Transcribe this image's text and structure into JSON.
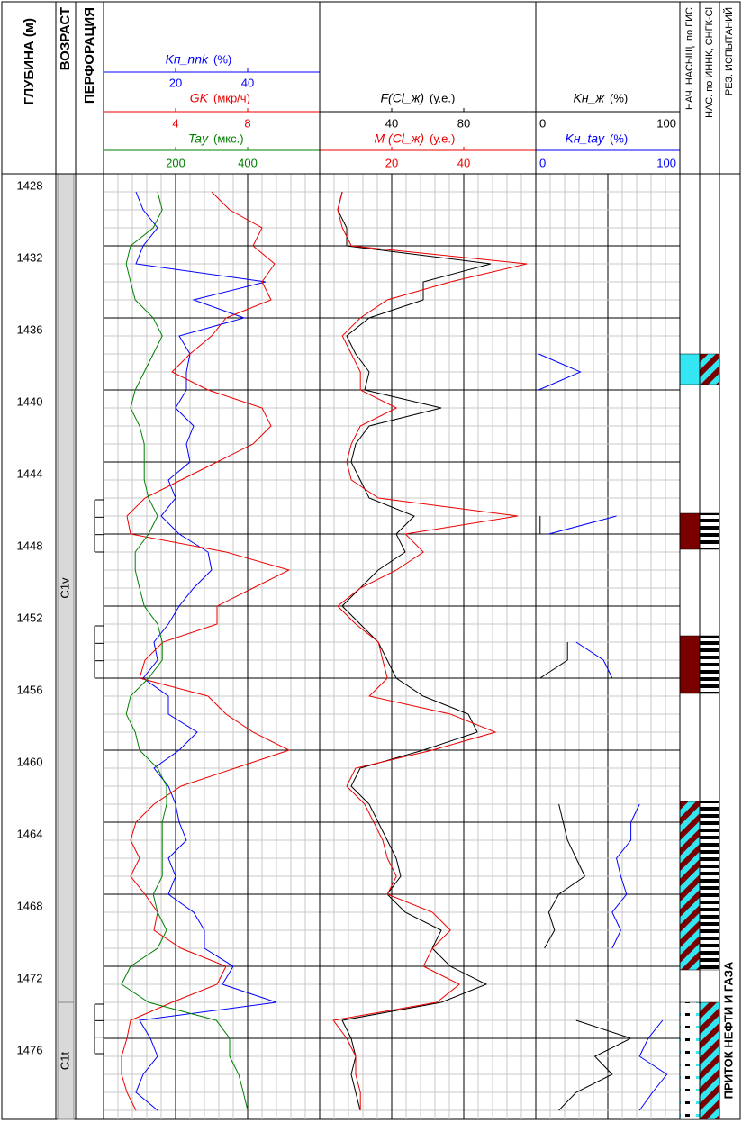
{
  "chart_data": {
    "type": "well-log",
    "depth_label": "ГЛУБИНА (м)",
    "ylim": [
      1428,
      1480.5
    ],
    "yticks": [
      1428,
      1432,
      1436,
      1440,
      1444,
      1448,
      1452,
      1456,
      1460,
      1464,
      1468,
      1472,
      1476
    ],
    "grid": true,
    "age": {
      "title": "ВОЗРАСТ",
      "intervals": [
        {
          "label": "C1v",
          "top": 1428,
          "bottom": 1474
        },
        {
          "label": "C1t",
          "top": 1474,
          "bottom": 1480.5
        }
      ]
    },
    "perforation": {
      "title": "ПЕРФОРАЦИЯ",
      "intervals": [
        {
          "top": 1446.1,
          "bottom": 1449
        },
        {
          "top": 1453.1,
          "bottom": 1456
        },
        {
          "top": 1474.1,
          "bottom": 1476.85
        }
      ]
    },
    "depths": [
      1429,
      1430,
      1431,
      1432,
      1433,
      1434,
      1435,
      1436,
      1437,
      1438,
      1439,
      1440,
      1441,
      1442,
      1443,
      1444,
      1445,
      1446,
      1447,
      1448,
      1449,
      1450,
      1451,
      1452,
      1453,
      1454,
      1455,
      1456,
      1457,
      1458,
      1459,
      1460,
      1461,
      1462,
      1463,
      1464,
      1465,
      1466,
      1467,
      1468,
      1469,
      1470,
      1471,
      1472,
      1473,
      1474,
      1475,
      1476,
      1477,
      1478,
      1479,
      1480
    ],
    "tracks": [
      {
        "series": [
          {
            "name": "Kп_nnk",
            "unit": "(%)",
            "color": "#0000ff",
            "xlim": [
              0,
              60
            ],
            "xticks": [
              20,
              40
            ],
            "values": [
              9,
              11,
              15,
              11,
              9,
              45,
              25,
              39,
              21,
              24,
              23,
              23,
              20,
              25,
              23,
              24,
              18,
              20,
              16,
              21,
              29,
              30,
              25,
              21,
              18,
              14,
              15,
              11,
              18,
              18,
              26,
              21,
              14,
              18,
              20,
              21,
              23,
              18,
              20,
              18,
              25,
              28,
              28,
              36,
              33,
              48,
              10,
              13,
              15,
              11,
              9,
              15
            ]
          },
          {
            "name": "GK",
            "unit": "(мкр/ч)",
            "color": "#ee0000",
            "xlim": [
              0,
              12
            ],
            "xticks": [
              4,
              8
            ],
            "values": [
              6.0,
              7.0,
              8.8,
              8.3,
              9.5,
              8.8,
              9.3,
              6.8,
              6.0,
              4.8,
              3.8,
              5.8,
              8.8,
              9.3,
              8.3,
              6.3,
              4.3,
              2.3,
              1.3,
              1.5,
              6.8,
              10.3,
              8.3,
              6.3,
              6.3,
              3.3,
              2.3,
              2.0,
              5.8,
              6.8,
              8.3,
              10.3,
              7.3,
              4.3,
              2.8,
              1.8,
              1.5,
              2.0,
              1.5,
              2.3,
              3.0,
              2.8,
              4.3,
              6.8,
              6.3,
              3.8,
              1.5,
              1.3,
              1.0,
              1.0,
              1.3,
              1.8
            ]
          },
          {
            "name": "Tay",
            "unit": "(мкс.)",
            "color": "#008000",
            "xlim": [
              0,
              600
            ],
            "xticks": [
              200,
              400
            ],
            "values": [
              150,
              163,
              138,
              75,
              63,
              75,
              88,
              138,
              163,
              138,
              113,
              88,
              75,
              100,
              113,
              113,
              113,
              125,
              150,
              125,
              88,
              88,
              100,
              113,
              150,
              163,
              163,
              125,
              75,
              63,
              88,
              100,
              150,
              175,
              175,
              163,
              163,
              163,
              163,
              138,
              150,
              175,
              150,
              75,
              50,
              125,
              313,
              350,
              350,
              375,
              388,
              400
            ]
          }
        ]
      },
      {
        "series": [
          {
            "name": "F(Cl_ж)",
            "unit": "(у.е.)",
            "color": "#000000",
            "xlim": [
              0,
              120
            ],
            "xticks": [
              40,
              80
            ],
            "values": [
              12.5,
              10,
              15,
              15,
              95,
              57.5,
              57.5,
              27.5,
              15,
              20,
              27.5,
              25,
              67.5,
              27.5,
              20,
              17.5,
              22.5,
              27.5,
              52.5,
              42.5,
              47.5,
              32.5,
              22.5,
              12.5,
              22.5,
              32.5,
              37.5,
              42.5,
              57.5,
              82.5,
              87.5,
              57.5,
              22.5,
              17.5,
              27.5,
              32.5,
              37.5,
              42.5,
              45,
              37.5,
              47.5,
              67.5,
              62.5,
              72.5,
              92.5,
              67.5,
              12.5,
              17.5,
              20,
              17.5,
              20,
              22.5
            ]
          },
          {
            "name": "M (Cl_ж)",
            "unit": "(у.е.)",
            "color": "#ee0000",
            "xlim": [
              0,
              60
            ],
            "xticks": [
              20,
              40
            ],
            "values": [
              6.3,
              5,
              6.3,
              8.8,
              57.5,
              36.3,
              18.8,
              11.3,
              6.3,
              8.8,
              11.3,
              11.3,
              21.3,
              11.3,
              8.8,
              7.5,
              8.8,
              16.3,
              55,
              23.8,
              28.8,
              21.3,
              11.3,
              5,
              10,
              16.3,
              17.5,
              18.8,
              13.8,
              36.3,
              48.8,
              31.3,
              10,
              7.5,
              12.5,
              15,
              17.5,
              18.8,
              21.3,
              18.8,
              31.3,
              36.3,
              31.3,
              28.8,
              38.8,
              32.5,
              3.8,
              7.5,
              10,
              10,
              11.3,
              11.3
            ]
          }
        ]
      },
      {
        "series": [
          {
            "name": "Kн_ж",
            "unit": "(%)",
            "color": "#000000",
            "xlim": [
              0,
              100
            ],
            "xticks": [
              0,
              100
            ],
            "values": [
              null,
              null,
              null,
              null,
              null,
              null,
              null,
              null,
              null,
              null,
              null,
              null,
              null,
              null,
              null,
              null,
              null,
              null,
              3,
              3,
              null,
              null,
              null,
              null,
              null,
              22,
              22,
              3,
              null,
              null,
              null,
              null,
              null,
              null,
              16,
              19,
              22,
              28,
              34,
              16,
              9,
              13,
              6,
              null,
              null,
              null,
              28,
              66,
              41,
              53,
              28,
              16
            ]
          },
          {
            "name": "Kн_tay",
            "unit": "(%)",
            "color": "#0000ff",
            "xlim": [
              0,
              100
            ],
            "xticks": [
              0,
              100
            ],
            "values": [
              null,
              null,
              null,
              null,
              null,
              null,
              null,
              null,
              null,
              2,
              31,
              2,
              null,
              null,
              null,
              null,
              null,
              null,
              56,
              9,
              null,
              null,
              null,
              null,
              null,
              28,
              47,
              53,
              null,
              null,
              null,
              null,
              null,
              null,
              72,
              66,
              66,
              56,
              59,
              63,
              53,
              59,
              53,
              null,
              null,
              null,
              88,
              78,
              72,
              91,
              81,
              72
            ]
          }
        ]
      }
    ],
    "columns": [
      {
        "title": "НАЧ. НАСЫЩ. по ГИС",
        "intervals": [
          {
            "top": 1438,
            "bottom": 1439.7,
            "fill": "#33e6f2"
          },
          {
            "top": 1446.85,
            "bottom": 1448.85,
            "fill": "#7a0000"
          },
          {
            "top": 1453.65,
            "bottom": 1456.85,
            "fill": "#7a0000"
          },
          {
            "top": 1462.85,
            "bottom": 1472.2,
            "pattern": "diag"
          },
          {
            "top": 1474,
            "bottom": 1480.5,
            "pattern": "gas"
          }
        ]
      },
      {
        "title": "НАС. по ИННК, СНГК-Cl",
        "intervals": [
          {
            "top": 1438,
            "bottom": 1439.7,
            "pattern": "diag"
          },
          {
            "top": 1446.85,
            "bottom": 1448.85,
            "pattern": "stripes"
          },
          {
            "top": 1453.65,
            "bottom": 1456.85,
            "pattern": "stripes"
          },
          {
            "top": 1462.85,
            "bottom": 1472.2,
            "pattern": "stripes"
          },
          {
            "top": 1474,
            "bottom": 1480.5,
            "pattern": "diag"
          }
        ]
      },
      {
        "title": "РЕЗ. ИСПЫТАНИЙ",
        "intervals": [
          {
            "top": 1470.6,
            "bottom": 1480.5,
            "text": "ПРИТОК НЕФТИ И ГАЗА"
          }
        ]
      }
    ]
  }
}
